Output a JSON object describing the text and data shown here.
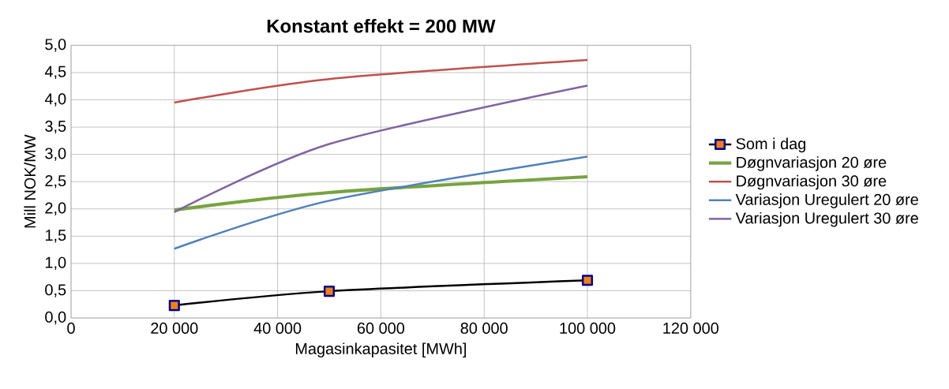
{
  "chart_data": {
    "type": "line",
    "title": "Konstant effekt = 200 MW",
    "xlabel": "Magasinkapasitet [MWh]",
    "ylabel": "Mill NOK/MW",
    "xlim": [
      0,
      120000
    ],
    "ylim": [
      0,
      5
    ],
    "xticks": [
      0,
      {
        "value": 20000,
        "label": "20 000"
      },
      {
        "value": 40000,
        "label": "40 000"
      },
      {
        "value": 60000,
        "label": "60 000"
      },
      {
        "value": 80000,
        "label": "80 000"
      },
      {
        "value": 100000,
        "label": "100 000"
      },
      {
        "value": 120000,
        "label": "120 000"
      }
    ],
    "yticks": [
      {
        "value": 0,
        "label": "0,0"
      },
      {
        "value": 0.5,
        "label": "0,5"
      },
      {
        "value": 1,
        "label": "1,0"
      },
      {
        "value": 1.5,
        "label": "1,5"
      },
      {
        "value": 2,
        "label": "2,0"
      },
      {
        "value": 2.5,
        "label": "2,5"
      },
      {
        "value": 3,
        "label": "3,0"
      },
      {
        "value": 3.5,
        "label": "3,5"
      },
      {
        "value": 4,
        "label": "4,0"
      },
      {
        "value": 4.5,
        "label": "4,5"
      },
      {
        "value": 5,
        "label": "5,0"
      }
    ],
    "grid": true,
    "legend": "right",
    "line_style": "solid",
    "x": [
      20000,
      50000,
      100000
    ],
    "series": [
      {
        "name": "Som i dag",
        "color": "#000000",
        "values": [
          0.23,
          0.49,
          0.69
        ],
        "marker": "square"
      },
      {
        "name": "Døgnvariasjon 20 øre",
        "color": "#77a33f",
        "values": [
          1.98,
          2.3,
          2.59
        ]
      },
      {
        "name": "Døgnvariasjon 30 øre",
        "color": "#c0504d",
        "values": [
          3.95,
          4.38,
          4.73
        ]
      },
      {
        "name": "Variasjon Uregulert 20 øre",
        "color": "#4f81bd",
        "values": [
          1.27,
          2.15,
          2.96
        ]
      },
      {
        "name": "Variasjon Uregulert 30 øre",
        "color": "#8064a2",
        "values": [
          1.94,
          3.19,
          4.26
        ]
      }
    ]
  }
}
